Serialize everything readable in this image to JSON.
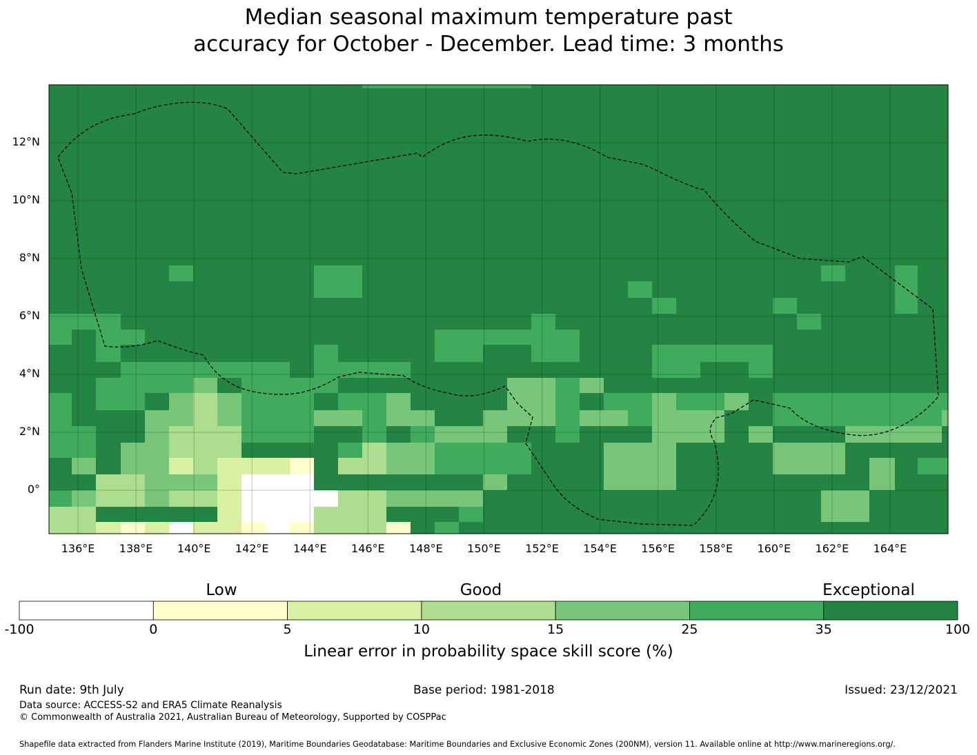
{
  "title": {
    "line1": "Median seasonal maximum temperature past",
    "line2": "accuracy for October - December. Lead time: 3 months"
  },
  "map": {
    "lat_ticks": [
      "12°N",
      "10°N",
      "8°N",
      "6°N",
      "4°N",
      "2°N",
      "0°"
    ],
    "lat_values": [
      12,
      10,
      8,
      6,
      4,
      2,
      0
    ],
    "lon_ticks": [
      "136°E",
      "138°E",
      "140°E",
      "142°E",
      "144°E",
      "146°E",
      "148°E",
      "150°E",
      "152°E",
      "154°E",
      "156°E",
      "158°E",
      "160°E",
      "162°E",
      "164°E"
    ],
    "lon_values": [
      136,
      138,
      140,
      142,
      144,
      146,
      148,
      150,
      152,
      154,
      156,
      158,
      160,
      162,
      164
    ],
    "lon_range": [
      135,
      166
    ],
    "lat_range": [
      -1.5,
      14
    ],
    "grid": true,
    "eez_boundary": "dashed black line",
    "background_class": 7
  },
  "colorbar": {
    "title": "Linear error in probability space skill score (%)",
    "categories": [
      "Low",
      "Good",
      "Exceptional"
    ],
    "ticks": [
      "-100",
      "0",
      "5",
      "10",
      "15",
      "25",
      "35",
      "100"
    ],
    "colors": [
      "#ffffff",
      "#ffffcc",
      "#d9f0a3",
      "#addd8e",
      "#78c679",
      "#41ab5d",
      "#238443"
    ]
  },
  "footer": {
    "run_date": "Run date: 9th July",
    "base_period": "Base period: 1981-2018",
    "issued": "Issued: 23/12/2021",
    "data_source": "Data source: ACCESS-S2 and ERA5 Climate Reanalysis",
    "copyright": "© Commonwealth of Australia 2021, Australian Bureau of Meteorology, Supported by COSPPac",
    "shapefile": "Shapefile data extracted from Flanders Marine Institute (2019), Maritime Boundaries Geodatabase: Maritime Boundaries and Exclusive Economic Zones (200NM), version 11. Available online at http://www.marineregions.org/."
  }
}
